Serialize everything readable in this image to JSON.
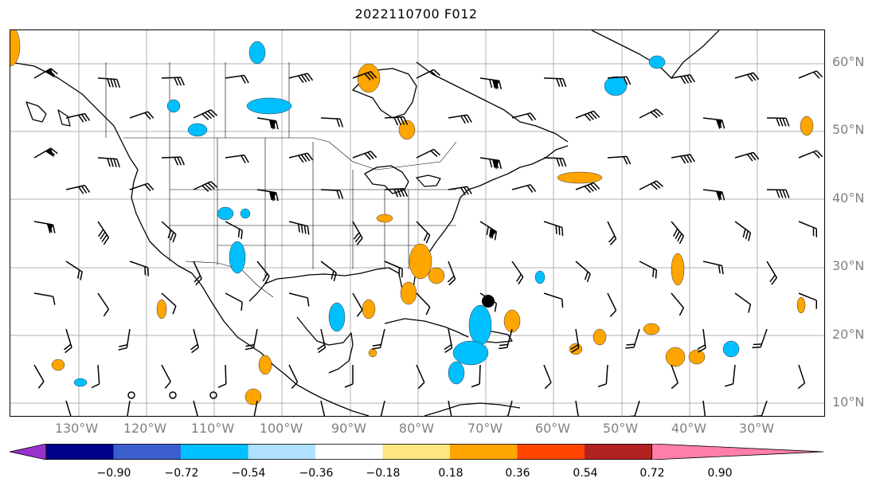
{
  "title": "2022110700 F012",
  "lat_labels": [
    "60°N",
    "50°N",
    "40°N",
    "30°N",
    "20°N",
    "10°N"
  ],
  "lon_labels": [
    "130°W",
    "120°W",
    "110°W",
    "100°W",
    "90°W",
    "80°W",
    "70°W",
    "60°W",
    "50°W",
    "40°W",
    "30°W"
  ],
  "colorbar": {
    "ticks": [
      "−0.90",
      "−0.72",
      "−0.54",
      "−0.36",
      "−0.18",
      "0.18",
      "0.36",
      "0.54",
      "0.72",
      "0.90"
    ],
    "colors": [
      "#9932cc",
      "#00008b",
      "#3a5fcd",
      "#00bfff",
      "#b0e0ff",
      "#ffffff",
      "#ffe680",
      "#ffa500",
      "#ff4500",
      "#b22222",
      "#ff7fa8"
    ]
  },
  "markers": [
    {
      "type": "storm-center",
      "lon": -70,
      "lat": 25
    }
  ],
  "colors": {
    "grid": "#b0b0b0",
    "coast": "#000000",
    "positive": "#ffa500",
    "negative": "#00bfff"
  }
}
